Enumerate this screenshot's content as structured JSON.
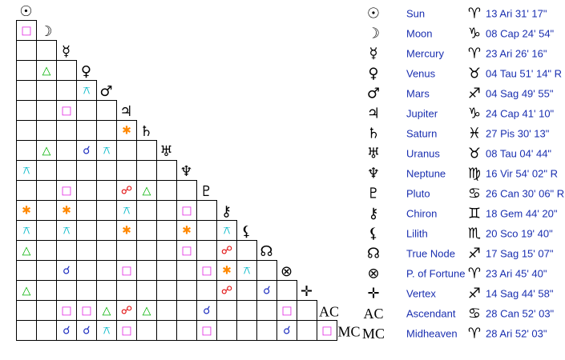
{
  "planets": [
    {
      "glyph": "☉",
      "name": "Sun",
      "sign": "♈",
      "position": "13 Ari 31' 17\""
    },
    {
      "glyph": "☽",
      "name": "Moon",
      "sign": "♑",
      "position": "08 Cap 24' 54\""
    },
    {
      "glyph": "☿",
      "name": "Mercury",
      "sign": "♈",
      "position": "23 Ari 26' 16\""
    },
    {
      "glyph": "♀",
      "name": "Venus",
      "sign": "♉",
      "position": "04 Tau 51' 14\" R"
    },
    {
      "glyph": "♂",
      "name": "Mars",
      "sign": "♐",
      "position": "04 Sag 49' 55\""
    },
    {
      "glyph": "♃",
      "name": "Jupiter",
      "sign": "♑",
      "position": "24 Cap 41' 10\""
    },
    {
      "glyph": "♄",
      "name": "Saturn",
      "sign": "♓",
      "position": "27 Pis 30' 13\""
    },
    {
      "glyph": "♅",
      "name": "Uranus",
      "sign": "♉",
      "position": "08 Tau 04' 44\""
    },
    {
      "glyph": "♆",
      "name": "Neptune",
      "sign": "♍",
      "position": "16 Vir 54' 02\" R"
    },
    {
      "glyph": "♇",
      "name": "Pluto",
      "sign": "♋",
      "position": "26 Can 30' 06\" R"
    },
    {
      "glyph": "⚷",
      "name": "Chiron",
      "sign": "♊",
      "position": "18 Gem 44' 20\""
    },
    {
      "glyph": "⚸",
      "name": "Lilith",
      "sign": "♏",
      "position": "20 Sco 19' 40\""
    },
    {
      "glyph": "☊",
      "name": "True Node",
      "sign": "♐",
      "position": "17 Sag 15' 07\""
    },
    {
      "glyph": "⊗",
      "name": "P. of Fortune",
      "sign": "♈",
      "position": "23 Ari 45' 40\""
    },
    {
      "glyph": "✛",
      "name": "Vertex",
      "sign": "♐",
      "position": "14 Sag 44' 58\""
    },
    {
      "glyph": "AC",
      "name": "Ascendant",
      "sign": "♋",
      "position": "28 Can 52' 03\""
    },
    {
      "glyph": "MC",
      "name": "Midheaven",
      "sign": "♈",
      "position": "28 Ari 52' 03\""
    }
  ],
  "grid": {
    "rows": [
      [
        {
          "glyph": "□",
          "color": "#e020e0"
        }
      ],
      [
        null,
        null
      ],
      [
        null,
        {
          "glyph": "△",
          "color": "#00b000"
        },
        null
      ],
      [
        null,
        null,
        null,
        {
          "glyph": "⚻",
          "color": "#00b8c8"
        }
      ],
      [
        null,
        null,
        {
          "glyph": "□",
          "color": "#e020e0"
        },
        null,
        null
      ],
      [
        null,
        null,
        null,
        null,
        null,
        {
          "glyph": "✱",
          "color": "#ff8800"
        }
      ],
      [
        null,
        {
          "glyph": "△",
          "color": "#00b000"
        },
        null,
        {
          "glyph": "☌",
          "color": "#2030c0"
        },
        {
          "glyph": "⚻",
          "color": "#00b8c8"
        },
        null,
        null
      ],
      [
        {
          "glyph": "⚻",
          "color": "#00b8c8"
        },
        null,
        null,
        null,
        null,
        null,
        null,
        null
      ],
      [
        null,
        null,
        {
          "glyph": "□",
          "color": "#e020e0"
        },
        null,
        null,
        {
          "glyph": "☍",
          "color": "#e00000"
        },
        {
          "glyph": "△",
          "color": "#00b000"
        },
        null,
        null
      ],
      [
        {
          "glyph": "✱",
          "color": "#ff8800"
        },
        null,
        {
          "glyph": "✱",
          "color": "#ff8800"
        },
        null,
        null,
        {
          "glyph": "⚻",
          "color": "#00b8c8"
        },
        null,
        null,
        {
          "glyph": "□",
          "color": "#e020e0"
        },
        null
      ],
      [
        {
          "glyph": "⚻",
          "color": "#00b8c8"
        },
        null,
        {
          "glyph": "⚻",
          "color": "#00b8c8"
        },
        null,
        null,
        {
          "glyph": "✱",
          "color": "#ff8800"
        },
        null,
        null,
        {
          "glyph": "✱",
          "color": "#ff8800"
        },
        null,
        {
          "glyph": "⚻",
          "color": "#00b8c8"
        }
      ],
      [
        {
          "glyph": "△",
          "color": "#00b000"
        },
        null,
        null,
        null,
        null,
        null,
        null,
        null,
        {
          "glyph": "□",
          "color": "#e020e0"
        },
        null,
        {
          "glyph": "☍",
          "color": "#e00000"
        },
        null
      ],
      [
        null,
        null,
        {
          "glyph": "☌",
          "color": "#2030c0"
        },
        null,
        null,
        {
          "glyph": "□",
          "color": "#e020e0"
        },
        null,
        null,
        null,
        {
          "glyph": "□",
          "color": "#e020e0"
        },
        {
          "glyph": "✱",
          "color": "#ff8800"
        },
        {
          "glyph": "⚻",
          "color": "#00b8c8"
        },
        null
      ],
      [
        {
          "glyph": "△",
          "color": "#00b000"
        },
        null,
        null,
        null,
        null,
        null,
        null,
        null,
        null,
        null,
        {
          "glyph": "☍",
          "color": "#e00000"
        },
        null,
        {
          "glyph": "☌",
          "color": "#2030c0"
        },
        null
      ],
      [
        null,
        null,
        {
          "glyph": "□",
          "color": "#e020e0"
        },
        {
          "glyph": "□",
          "color": "#e020e0"
        },
        {
          "glyph": "△",
          "color": "#00b000"
        },
        {
          "glyph": "☍",
          "color": "#e00000"
        },
        {
          "glyph": "△",
          "color": "#00b000"
        },
        null,
        null,
        {
          "glyph": "☌",
          "color": "#2030c0"
        },
        null,
        null,
        null,
        {
          "glyph": "□",
          "color": "#e020e0"
        },
        null
      ],
      [
        null,
        null,
        {
          "glyph": "☌",
          "color": "#2030c0"
        },
        {
          "glyph": "☌",
          "color": "#2030c0"
        },
        {
          "glyph": "⚻",
          "color": "#00b8c8"
        },
        {
          "glyph": "□",
          "color": "#e020e0"
        },
        null,
        null,
        null,
        {
          "glyph": "□",
          "color": "#e020e0"
        },
        null,
        null,
        null,
        {
          "glyph": "☌",
          "color": "#2030c0"
        },
        null,
        {
          "glyph": "□",
          "color": "#e020e0"
        }
      ]
    ]
  }
}
